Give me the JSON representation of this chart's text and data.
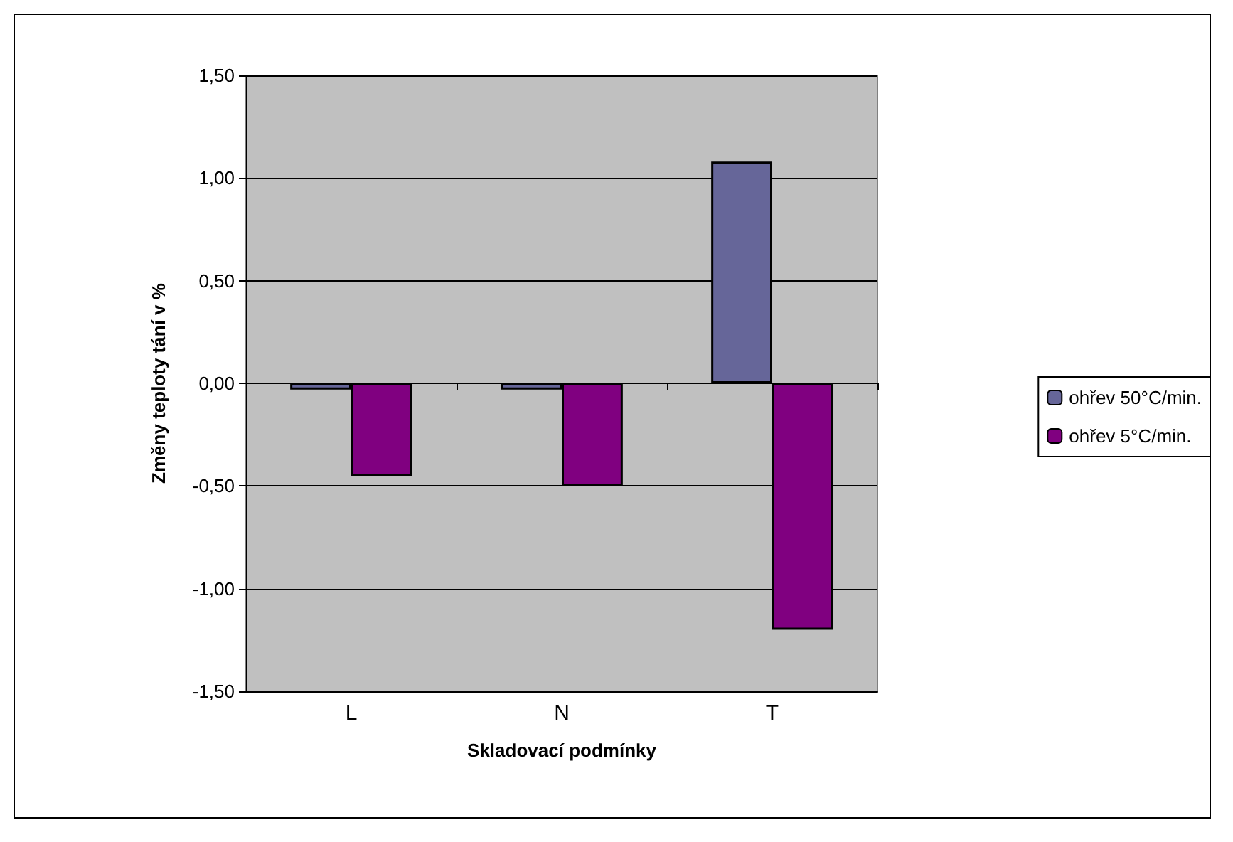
{
  "chart_data": {
    "type": "bar",
    "xlabel": "Skladovací podmínky",
    "ylabel": "Změny teploty tání v %",
    "categories": [
      "L",
      "N",
      "T"
    ],
    "series": [
      {
        "name": "ohřev 50°C/min.",
        "color": "#666699",
        "values": [
          -0.03,
          -0.03,
          1.08
        ]
      },
      {
        "name": "ohřev 5°C/min.",
        "color": "#800080",
        "values": [
          -0.45,
          -0.5,
          -1.2
        ]
      }
    ],
    "ylim": [
      -1.5,
      1.5
    ],
    "yticks": [
      {
        "value": -1.5,
        "label": "-1,50"
      },
      {
        "value": -1,
        "label": "-1,00"
      },
      {
        "value": -0.5,
        "label": "-0,50"
      },
      {
        "value": 0,
        "label": "0,00"
      },
      {
        "value": 0.5,
        "label": "0,50"
      },
      {
        "value": 1,
        "label": "1,00"
      },
      {
        "value": 1.5,
        "label": "1,50"
      }
    ],
    "grid": "y",
    "legend": "right"
  }
}
